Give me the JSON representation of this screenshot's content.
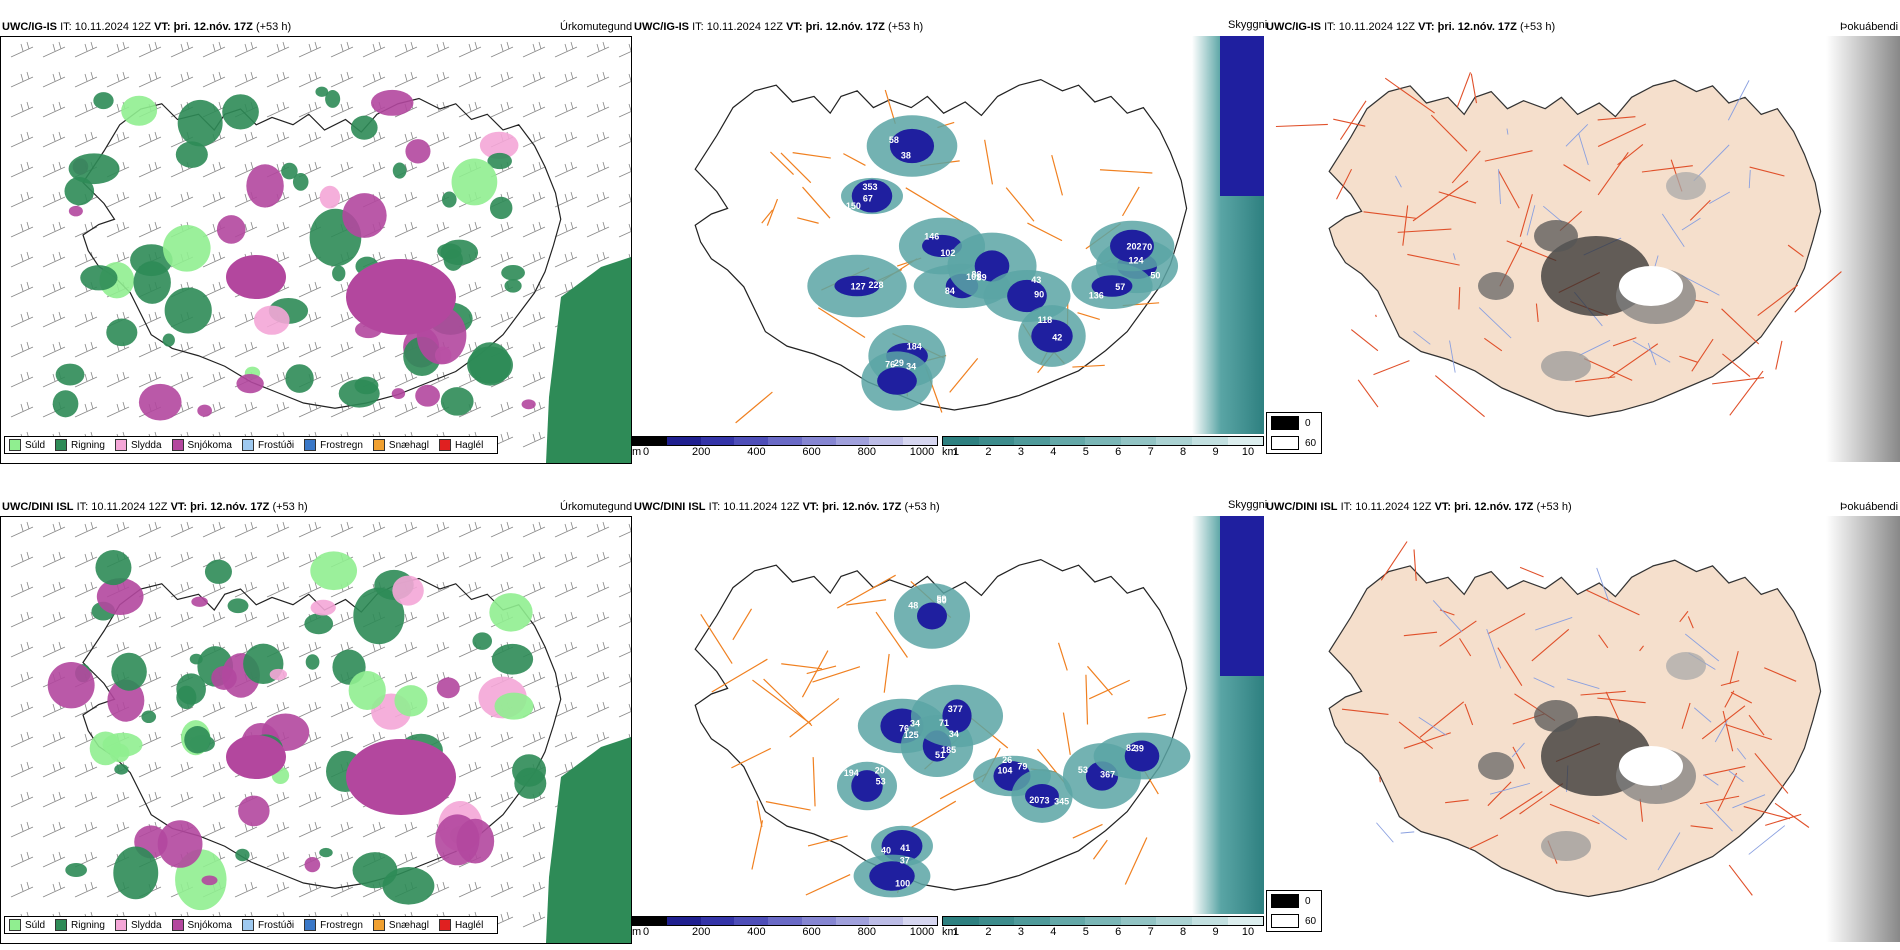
{
  "rows": [
    {
      "model": "UWC/IG-IS",
      "init_label": "IT:",
      "init_value": "10.11.2024 12Z",
      "valid_label": "VT:",
      "valid_value": "þri. 12.nóv. 17Z",
      "lead": "(+53 h)",
      "precip_title": "Úrkomutegund",
      "ceiling_title": "Skyggni",
      "fog_title": "Þokuábendi",
      "ceiling_labels": [
        "67",
        "102",
        "127",
        "84",
        "88",
        "90",
        "118",
        "38",
        "50",
        "136",
        "184",
        "76",
        "70",
        "353",
        "146",
        "228",
        "89",
        "101",
        "43",
        "42",
        "58",
        "124",
        "57",
        "34",
        "29",
        "202",
        "150"
      ]
    },
    {
      "model": "UWC/DINI ISL",
      "init_label": "IT:",
      "init_value": "10.11.2024 12Z",
      "valid_label": "VT:",
      "valid_value": "þri. 12.nóv. 17Z",
      "lead": "(+53 h)",
      "precip_title": "Úrkomutegund",
      "ceiling_title": "Skyggni",
      "fog_title": "Þokuábendi",
      "ceiling_labels": [
        "48",
        "125",
        "51",
        "53",
        "79",
        "20",
        "367",
        "82",
        "41",
        "100",
        "377",
        "59",
        "76",
        "185",
        "194",
        "104",
        "73",
        "53",
        "39",
        "40",
        "37",
        "71",
        "50",
        "34",
        "34",
        "20",
        "26",
        "345"
      ]
    }
  ],
  "precip_legend": [
    {
      "label": "Súld",
      "color": "#90ee90"
    },
    {
      "label": "Rigning",
      "color": "#2e8b57"
    },
    {
      "label": "Slydda",
      "color": "#f4a6d7"
    },
    {
      "label": "Snjókoma",
      "color": "#b3479e"
    },
    {
      "label": "Frostúði",
      "color": "#9ec9f0"
    },
    {
      "label": "Frostregn",
      "color": "#3a78c8"
    },
    {
      "label": "Snæhagl",
      "color": "#f0a030"
    },
    {
      "label": "Haglél",
      "color": "#e02020"
    }
  ],
  "ceiling_colorbar": {
    "unit": "m",
    "ticks": [
      "0",
      "200",
      "400",
      "600",
      "800",
      "1000"
    ],
    "colors": [
      "#000000",
      "#1f1f8f",
      "#3434a8",
      "#4e4eb8",
      "#6a6ac6",
      "#8686d2",
      "#a0a0dc",
      "#bcbce6",
      "#d6d6f0"
    ]
  },
  "vis_colorbar": {
    "unit": "km",
    "ticks": [
      "1",
      "2",
      "3",
      "4",
      "5",
      "6",
      "7",
      "8",
      "9",
      "10"
    ],
    "colors": [
      "#2e8080",
      "#3d8c8c",
      "#4f9a9a",
      "#64a8a8",
      "#7ab6b6",
      "#92c4c4",
      "#aad2d2",
      "#c2e0e0",
      "#dceeee"
    ]
  },
  "fog_legend": [
    {
      "label": "0",
      "color": "#000000"
    },
    {
      "label": "60",
      "color": "#ffffff"
    }
  ]
}
